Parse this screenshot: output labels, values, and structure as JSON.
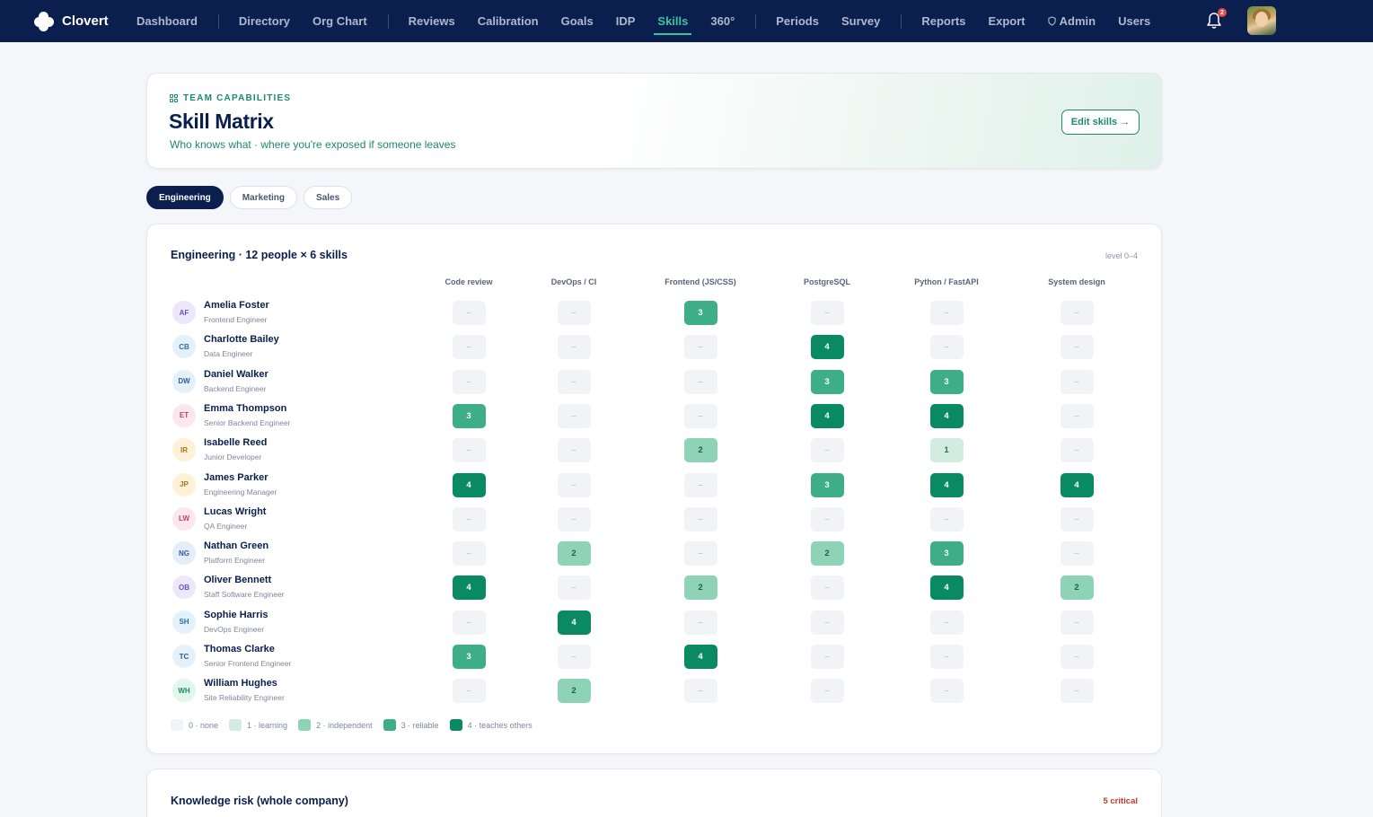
{
  "nav": {
    "brand": "Clovert",
    "items": [
      {
        "label": "Dashboard",
        "name": "nav-dashboard",
        "active": false
      },
      {
        "sep": true
      },
      {
        "label": "Directory",
        "name": "nav-directory",
        "active": false
      },
      {
        "label": "Org Chart",
        "name": "nav-org-chart",
        "active": false
      },
      {
        "sep": true
      },
      {
        "label": "Reviews",
        "name": "nav-reviews",
        "active": false
      },
      {
        "label": "Calibration",
        "name": "nav-calibration",
        "active": false
      },
      {
        "label": "Goals",
        "name": "nav-goals",
        "active": false
      },
      {
        "label": "IDP",
        "name": "nav-idp",
        "active": false
      },
      {
        "label": "Skills",
        "name": "nav-skills",
        "active": true
      },
      {
        "label": "360°",
        "name": "nav-360",
        "active": false
      },
      {
        "sep": true
      },
      {
        "label": "Periods",
        "name": "nav-periods",
        "active": false
      },
      {
        "label": "Survey",
        "name": "nav-survey",
        "active": false
      },
      {
        "sep": true
      },
      {
        "label": "Reports",
        "name": "nav-reports",
        "active": false
      },
      {
        "label": "Export",
        "name": "nav-export",
        "active": false
      },
      {
        "label": "Admin",
        "name": "nav-admin",
        "active": false,
        "icon": "shield-icon"
      },
      {
        "label": "Users",
        "name": "nav-users",
        "active": false
      }
    ],
    "notification_count": "2",
    "colors": {
      "bg": "#0a1f4d",
      "active": "#3cc4a0"
    }
  },
  "hero": {
    "eyebrow": "TEAM CAPABILITIES",
    "title": "Skill Matrix",
    "subtitle": "Who knows what · where you're exposed if someone leaves",
    "edit_button": "Edit skills →"
  },
  "tabs": [
    {
      "label": "Engineering",
      "active": true
    },
    {
      "label": "Marketing",
      "active": false
    },
    {
      "label": "Sales",
      "active": false
    }
  ],
  "matrix": {
    "title": "Engineering · 12 people × 6 skills",
    "level_note": "level 0–4",
    "skills": [
      "Code review",
      "DevOps / CI",
      "Frontend (JS/CSS)",
      "PostgreSQL",
      "Python / FastAPI",
      "System design"
    ],
    "empty_symbol": "–",
    "people": [
      {
        "initials": "AF",
        "name": "Amelia Foster",
        "role": "Frontend Engineer",
        "avatar_bg": "#ede7fb",
        "avatar_fg": "#6b4fc4",
        "levels": [
          0,
          0,
          3,
          0,
          0,
          0
        ]
      },
      {
        "initials": "CB",
        "name": "Charlotte Bailey",
        "role": "Data Engineer",
        "avatar_bg": "#e3f1fb",
        "avatar_fg": "#2f6fa8",
        "levels": [
          0,
          0,
          0,
          4,
          0,
          0
        ]
      },
      {
        "initials": "DW",
        "name": "Daniel Walker",
        "role": "Backend Engineer",
        "avatar_bg": "#e5f1fa",
        "avatar_fg": "#2b5f8f",
        "levels": [
          0,
          0,
          0,
          3,
          3,
          0
        ]
      },
      {
        "initials": "ET",
        "name": "Emma Thompson",
        "role": "Senior Backend Engineer",
        "avatar_bg": "#fce7ef",
        "avatar_fg": "#c0406f",
        "levels": [
          3,
          0,
          0,
          4,
          4,
          0
        ]
      },
      {
        "initials": "IR",
        "name": "Isabelle Reed",
        "role": "Junior Developer",
        "avatar_bg": "#fdf1d8",
        "avatar_fg": "#b0741b",
        "levels": [
          0,
          0,
          2,
          0,
          1,
          0
        ]
      },
      {
        "initials": "JP",
        "name": "James Parker",
        "role": "Engineering Manager",
        "avatar_bg": "#fdf1d8",
        "avatar_fg": "#b0741b",
        "levels": [
          4,
          0,
          0,
          3,
          4,
          4
        ]
      },
      {
        "initials": "LW",
        "name": "Lucas Wright",
        "role": "QA Engineer",
        "avatar_bg": "#fce7ef",
        "avatar_fg": "#c0406f",
        "levels": [
          0,
          0,
          0,
          0,
          0,
          0
        ]
      },
      {
        "initials": "NG",
        "name": "Nathan Green",
        "role": "Platform Engineer",
        "avatar_bg": "#e5ecfa",
        "avatar_fg": "#2f5aa8",
        "levels": [
          0,
          2,
          0,
          2,
          3,
          0
        ]
      },
      {
        "initials": "OB",
        "name": "Oliver Bennett",
        "role": "Staff Software Engineer",
        "avatar_bg": "#ede7fb",
        "avatar_fg": "#6b4fc4",
        "levels": [
          4,
          0,
          2,
          0,
          4,
          2
        ]
      },
      {
        "initials": "SH",
        "name": "Sophie Harris",
        "role": "DevOps Engineer",
        "avatar_bg": "#e3f1fb",
        "avatar_fg": "#2f6fa8",
        "levels": [
          0,
          4,
          0,
          0,
          0,
          0
        ]
      },
      {
        "initials": "TC",
        "name": "Thomas Clarke",
        "role": "Senior Frontend Engineer",
        "avatar_bg": "#e5f1fa",
        "avatar_fg": "#2b5f8f",
        "levels": [
          3,
          0,
          4,
          0,
          0,
          0
        ]
      },
      {
        "initials": "WH",
        "name": "William Hughes",
        "role": "Site Reliability Engineer",
        "avatar_bg": "#e1f6ec",
        "avatar_fg": "#1f8a5a",
        "levels": [
          0,
          2,
          0,
          0,
          0,
          0
        ]
      }
    ],
    "legend": [
      {
        "level": 0,
        "label": "0 · none"
      },
      {
        "level": 1,
        "label": "1 · learning"
      },
      {
        "level": 2,
        "label": "2 · independent"
      },
      {
        "level": 3,
        "label": "3 · reliable"
      },
      {
        "level": 4,
        "label": "4 · teaches others"
      }
    ],
    "level_colors": [
      "#f1f3f7",
      "#d3ece2",
      "#8fd3b7",
      "#3eae88",
      "#0a8a63"
    ]
  },
  "risk": {
    "title": "Knowledge risk (whole company)",
    "badge": "5 critical"
  }
}
